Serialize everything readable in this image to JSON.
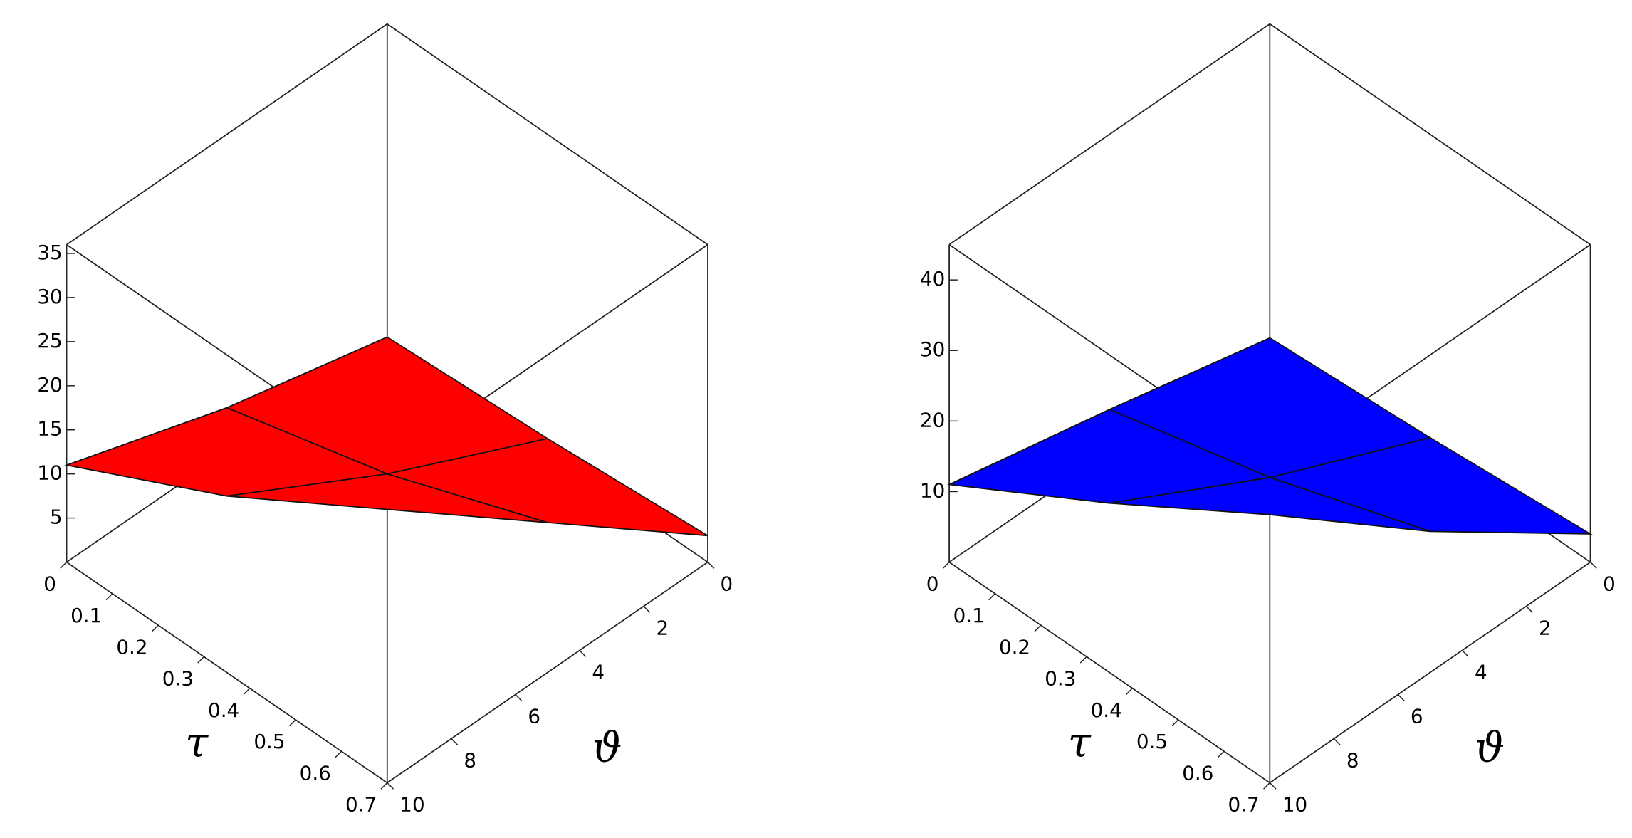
{
  "chart_data": [
    {
      "type": "surface",
      "color": "#ff0000",
      "xlabel": "τ",
      "ylabel": "ϑ",
      "xlim": [
        0,
        0.7
      ],
      "xticks": [
        0,
        0.1,
        0.2,
        0.3,
        0.4,
        0.5,
        0.6,
        0.7
      ],
      "ylim": [
        0,
        10
      ],
      "yticks": [
        0,
        2,
        4,
        6,
        8,
        10
      ],
      "zlim": [
        0,
        36
      ],
      "zticks": [
        5,
        10,
        15,
        20,
        25,
        30,
        35
      ],
      "x": [
        0,
        0.35,
        0.7
      ],
      "y": [
        0,
        5,
        10
      ],
      "z": [
        [
          0.5,
          1.5,
          3
        ],
        [
          5,
          10,
          17
        ],
        [
          11,
          20,
          31
        ]
      ]
    },
    {
      "type": "surface",
      "color": "#0000ff",
      "xlabel": "τ",
      "ylabel": "ϑ",
      "xlim": [
        0,
        0.7
      ],
      "xticks": [
        0,
        0.1,
        0.2,
        0.3,
        0.4,
        0.5,
        0.6,
        0.7
      ],
      "ylim": [
        0,
        10
      ],
      "yticks": [
        0,
        2,
        4,
        6,
        8,
        10
      ],
      "zlim": [
        0,
        45
      ],
      "zticks": [
        10,
        20,
        30,
        40
      ],
      "x": [
        0,
        0.35,
        0.7
      ],
      "y": [
        0,
        5,
        10
      ],
      "z": [
        [
          0.5,
          2,
          4
        ],
        [
          6,
          12,
          20
        ],
        [
          11,
          24,
          38
        ]
      ]
    }
  ]
}
